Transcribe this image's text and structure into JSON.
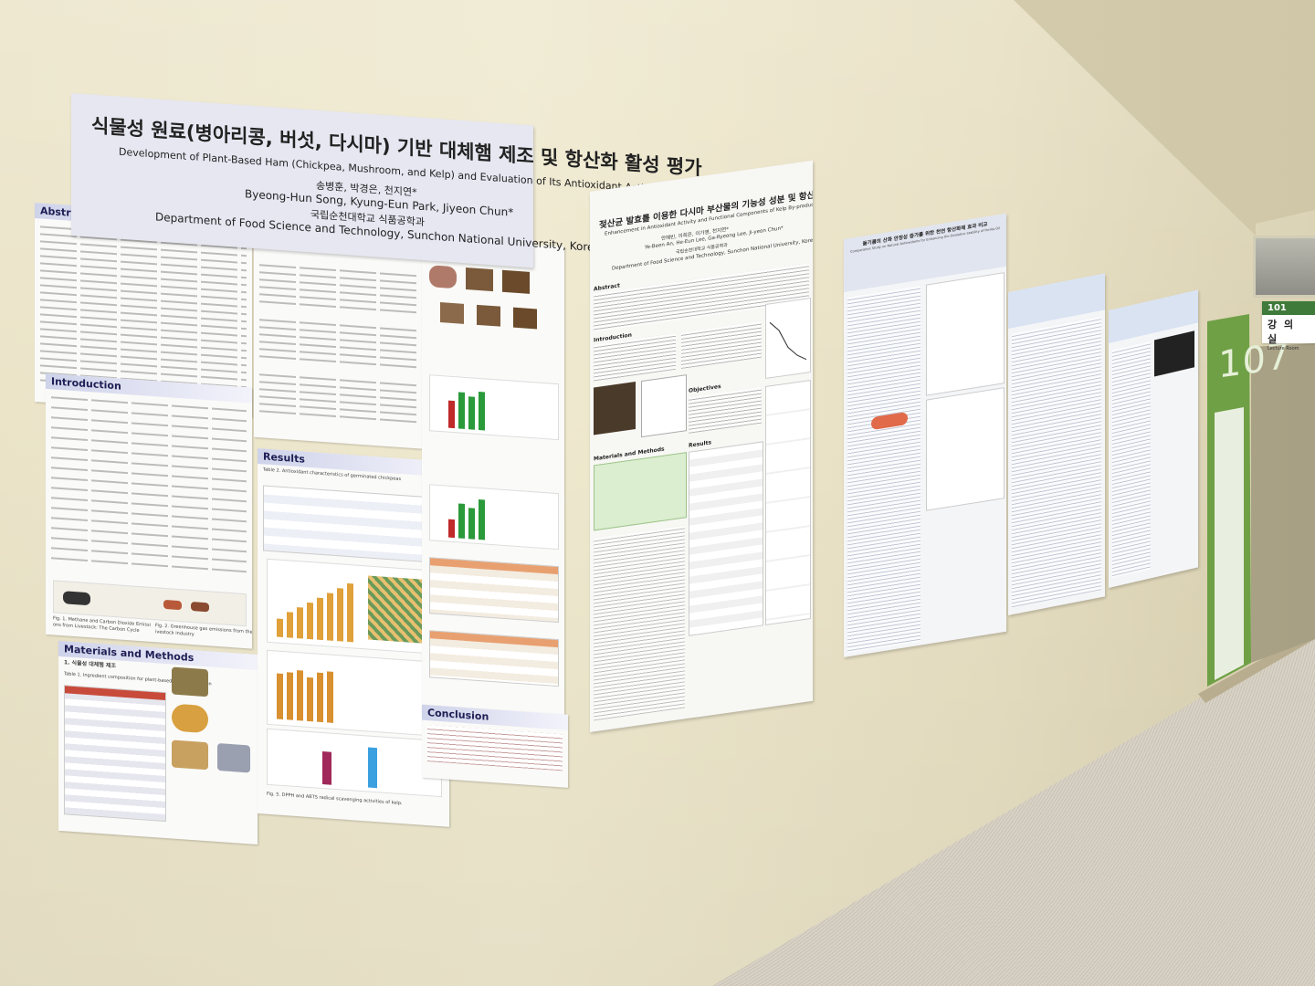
{
  "poster1": {
    "title_kr": "식물성 원료(병아리콩, 버섯, 다시마) 기반 대체햄 제조 및 항산화 활성 평가",
    "title_en": "Development of Plant-Based Ham (Chickpea, Mushroom, and Kelp) and Evaluation of Its Antioxidant Activity",
    "authors_kr": "송병훈, 박경은, 천지연*",
    "authors_en": "Byeong-Hun Song, Kyung-Eun Park, Jiyeon Chun*",
    "institution_kr": "국립순천대학교 식품공학과",
    "institution_en": "Department of Food Science and Technology, Sunchon National University, Korea",
    "sections": {
      "abstract": "Abstract",
      "introduction": "Introduction",
      "materials": "Materials and Methods",
      "results": "Results",
      "conclusion": "Conclusion"
    },
    "fig_caption_1": "Fig. 1. Methane and Carbon Dioxide Emissions from Livestock: The Carbon Cycle",
    "fig_caption_2": "Fig. 2. Greenhouse gas emissions from the livestock industry",
    "fig_caption_3": "Fig. 5. DPPH and ABTS radical scavenging activities of kelp.",
    "table_title_1": "Table 1. Ingredient composition for plant-based ham preparation",
    "table_title_2": "Table 2. Antioxidant characteristics of germinated chickpeas",
    "materials_item": "1. 식물성 대체햄 제조"
  },
  "poster2": {
    "title_kr": "젖산균 발효를 이용한 다시마 부산물의 기능성 성분 및 항산화 활성 증진",
    "title_en": "Enhancement in Antioxidant Activity and Functional Components of Kelp By-products Using Lactic Acid Bacteria",
    "authors_kr": "안예빈, 이희은, 이가영, 천지연*",
    "authors_en": "Ye-Been An, He-Eun Lee, Ga-Ryeong Lee, Ji-yeon Chun*",
    "institution_kr": "국립순천대학교 식품공학과",
    "institution_en": "Department of Food Science and Technology, Sunchon National University, Korea",
    "sections": {
      "abstract": "Abstract",
      "introduction": "Introduction",
      "objectives": "Objectives",
      "materials": "Materials and Methods",
      "results": "Results"
    }
  },
  "poster3": {
    "title_kr": "들기름의 산화 안정성 증가를 위한 천연 항산화제 효과 비교",
    "title_en": "Comparative Study on Natural Antioxidants for Enhancing the Oxidative Stability of Perilla Oil"
  },
  "door": {
    "number": "107",
    "sign_number": "101",
    "sign_kr": "강 의 실",
    "sign_en": "Lecture Room"
  },
  "colors": {
    "wall": "#ece5ca",
    "door_green": "#6fa046",
    "poster_title_band": "#e7e7f2"
  }
}
